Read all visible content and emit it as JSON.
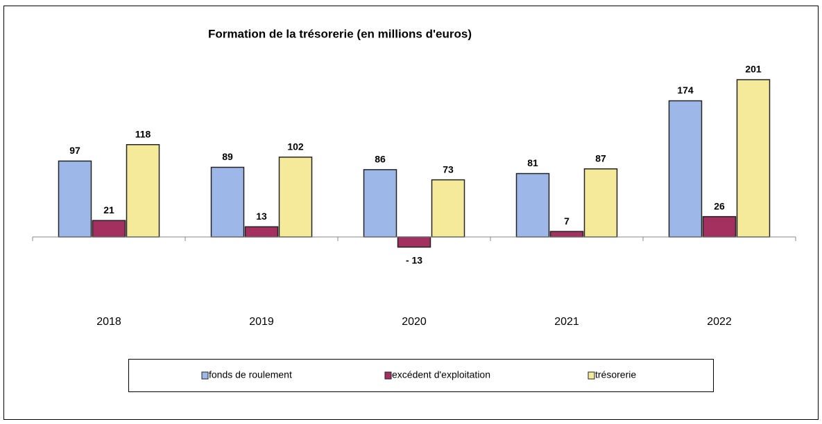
{
  "chart_data": {
    "type": "bar",
    "title": "Formation  de la trésorerie  (en millions  d'euros)",
    "categories": [
      "2018",
      "2019",
      "2020",
      "2021",
      "2022"
    ],
    "series": [
      {
        "name": "fonds de roulement",
        "color": "#9db8e8",
        "values": [
          97,
          89,
          86,
          81,
          174
        ]
      },
      {
        "name": "excédent d'exploitation",
        "color": "#a3305f",
        "values": [
          21,
          13,
          -13,
          7,
          26
        ],
        "value_labels": [
          "21",
          "13",
          "- 13",
          "7",
          "26"
        ]
      },
      {
        "name": "trésorerie",
        "color": "#f4ea9a",
        "values": [
          118,
          102,
          73,
          87,
          201
        ]
      }
    ],
    "legend": "bottom"
  }
}
